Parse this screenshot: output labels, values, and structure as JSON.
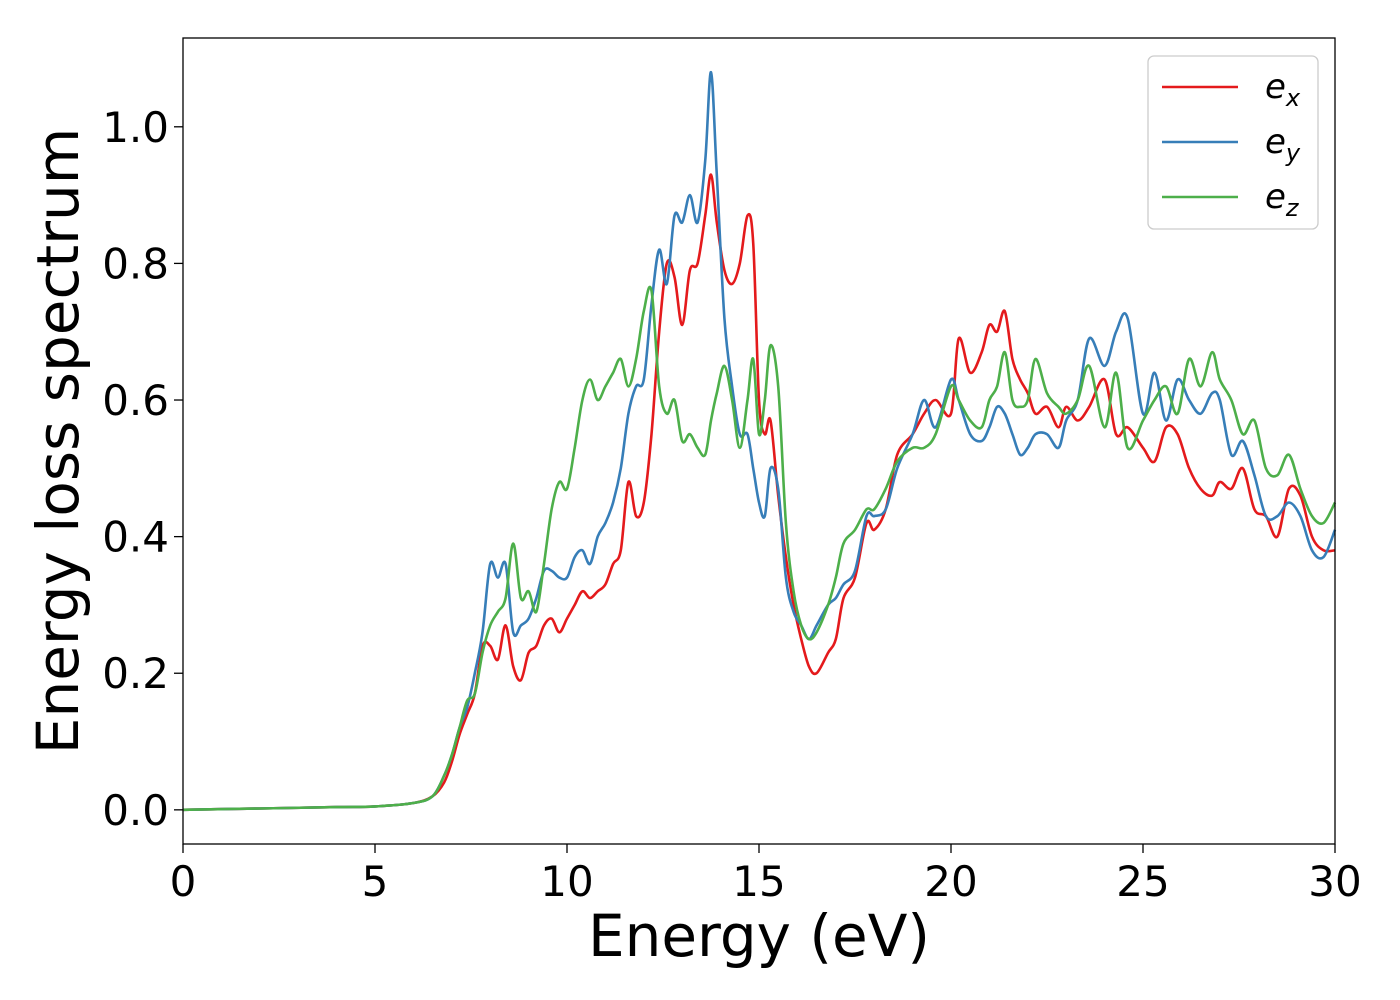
{
  "chart_data": {
    "type": "line",
    "title": "",
    "xlabel": "Energy (eV)",
    "ylabel": "Energy loss spectrum",
    "xlim": [
      0,
      30
    ],
    "ylim": [
      -0.05,
      1.13
    ],
    "xticks": [
      0,
      5,
      10,
      15,
      20,
      25,
      30
    ],
    "xtick_labels": [
      "0",
      "5",
      "10",
      "15",
      "20",
      "25",
      "30"
    ],
    "yticks": [
      0.0,
      0.2,
      0.4,
      0.6,
      0.8,
      1.0
    ],
    "ytick_labels": [
      "0.0",
      "0.2",
      "0.4",
      "0.6",
      "0.8",
      "1.0"
    ],
    "grid": false,
    "legend_placement": "top-right",
    "series": [
      {
        "name": "e_x",
        "label_main": "e",
        "label_sub": "x",
        "color": "#e41a1c",
        "x": [
          0,
          2,
          4,
          5,
          6,
          6.5,
          6.8,
          7.0,
          7.2,
          7.4,
          7.6,
          7.8,
          8.0,
          8.2,
          8.4,
          8.6,
          8.8,
          9.0,
          9.2,
          9.4,
          9.6,
          9.8,
          10.0,
          10.2,
          10.4,
          10.6,
          10.8,
          11.0,
          11.2,
          11.4,
          11.6,
          11.8,
          12.0,
          12.2,
          12.4,
          12.6,
          12.8,
          13.0,
          13.2,
          13.4,
          13.6,
          13.75,
          13.9,
          14.1,
          14.3,
          14.5,
          14.7,
          14.85,
          15.0,
          15.15,
          15.3,
          15.5,
          15.7,
          15.9,
          16.1,
          16.3,
          16.5,
          16.8,
          17.0,
          17.2,
          17.5,
          17.8,
          18.0,
          18.3,
          18.6,
          19.0,
          19.3,
          19.6,
          20.0,
          20.2,
          20.5,
          20.8,
          21.0,
          21.2,
          21.4,
          21.6,
          21.8,
          22.0,
          22.2,
          22.5,
          22.8,
          23.0,
          23.3,
          23.6,
          24.0,
          24.3,
          24.6,
          25.0,
          25.3,
          25.6,
          25.9,
          26.2,
          26.5,
          26.8,
          27.0,
          27.3,
          27.6,
          27.9,
          28.2,
          28.5,
          28.8,
          29.1,
          29.4,
          29.7,
          30.0
        ],
        "y": [
          0.0,
          0.002,
          0.004,
          0.005,
          0.01,
          0.02,
          0.04,
          0.07,
          0.11,
          0.14,
          0.17,
          0.24,
          0.24,
          0.22,
          0.27,
          0.21,
          0.19,
          0.23,
          0.24,
          0.27,
          0.28,
          0.26,
          0.28,
          0.3,
          0.32,
          0.31,
          0.32,
          0.33,
          0.36,
          0.38,
          0.48,
          0.43,
          0.45,
          0.55,
          0.7,
          0.8,
          0.78,
          0.71,
          0.79,
          0.8,
          0.87,
          0.93,
          0.86,
          0.79,
          0.77,
          0.8,
          0.87,
          0.83,
          0.6,
          0.55,
          0.57,
          0.46,
          0.37,
          0.3,
          0.25,
          0.21,
          0.2,
          0.23,
          0.25,
          0.31,
          0.34,
          0.42,
          0.41,
          0.44,
          0.52,
          0.55,
          0.58,
          0.6,
          0.58,
          0.69,
          0.64,
          0.67,
          0.71,
          0.7,
          0.73,
          0.66,
          0.63,
          0.61,
          0.58,
          0.59,
          0.56,
          0.59,
          0.57,
          0.59,
          0.63,
          0.55,
          0.56,
          0.53,
          0.51,
          0.56,
          0.55,
          0.5,
          0.47,
          0.46,
          0.48,
          0.47,
          0.5,
          0.44,
          0.43,
          0.4,
          0.47,
          0.46,
          0.4,
          0.38,
          0.38
        ]
      },
      {
        "name": "e_y",
        "label_main": "e",
        "label_sub": "y",
        "color": "#377eb8",
        "x": [
          0,
          2,
          4,
          5,
          6,
          6.5,
          6.8,
          7.0,
          7.2,
          7.4,
          7.6,
          7.8,
          8.0,
          8.2,
          8.4,
          8.6,
          8.8,
          9.0,
          9.2,
          9.4,
          9.6,
          9.8,
          10.0,
          10.2,
          10.4,
          10.6,
          10.8,
          11.0,
          11.2,
          11.4,
          11.6,
          11.8,
          12.0,
          12.2,
          12.4,
          12.6,
          12.8,
          13.0,
          13.2,
          13.4,
          13.6,
          13.75,
          13.9,
          14.1,
          14.3,
          14.5,
          14.7,
          14.85,
          15.0,
          15.15,
          15.3,
          15.5,
          15.7,
          15.9,
          16.1,
          16.3,
          16.5,
          16.8,
          17.0,
          17.2,
          17.5,
          17.8,
          18.0,
          18.3,
          18.6,
          19.0,
          19.3,
          19.6,
          20.0,
          20.2,
          20.5,
          20.8,
          21.0,
          21.2,
          21.4,
          21.6,
          21.8,
          22.0,
          22.2,
          22.5,
          22.8,
          23.0,
          23.3,
          23.6,
          24.0,
          24.3,
          24.6,
          25.0,
          25.3,
          25.6,
          25.9,
          26.2,
          26.5,
          26.8,
          27.0,
          27.3,
          27.6,
          27.9,
          28.2,
          28.5,
          28.8,
          29.1,
          29.4,
          29.7,
          30.0
        ],
        "y": [
          0.0,
          0.002,
          0.004,
          0.005,
          0.01,
          0.02,
          0.05,
          0.08,
          0.12,
          0.15,
          0.2,
          0.26,
          0.36,
          0.34,
          0.36,
          0.26,
          0.27,
          0.28,
          0.31,
          0.35,
          0.35,
          0.34,
          0.34,
          0.37,
          0.38,
          0.36,
          0.4,
          0.42,
          0.45,
          0.5,
          0.58,
          0.62,
          0.63,
          0.74,
          0.82,
          0.77,
          0.87,
          0.86,
          0.9,
          0.86,
          0.95,
          1.08,
          0.93,
          0.72,
          0.62,
          0.55,
          0.55,
          0.5,
          0.45,
          0.43,
          0.5,
          0.47,
          0.34,
          0.29,
          0.27,
          0.25,
          0.27,
          0.3,
          0.31,
          0.33,
          0.35,
          0.43,
          0.43,
          0.44,
          0.5,
          0.55,
          0.6,
          0.56,
          0.63,
          0.6,
          0.55,
          0.54,
          0.56,
          0.59,
          0.58,
          0.55,
          0.52,
          0.53,
          0.55,
          0.55,
          0.53,
          0.57,
          0.6,
          0.69,
          0.65,
          0.7,
          0.72,
          0.58,
          0.64,
          0.57,
          0.63,
          0.6,
          0.58,
          0.61,
          0.6,
          0.52,
          0.54,
          0.49,
          0.43,
          0.43,
          0.45,
          0.43,
          0.38,
          0.37,
          0.41
        ]
      },
      {
        "name": "e_z",
        "label_main": "e",
        "label_sub": "z",
        "color": "#4daf4a",
        "x": [
          0,
          2,
          4,
          5,
          6,
          6.5,
          6.8,
          7.0,
          7.2,
          7.4,
          7.6,
          7.8,
          8.0,
          8.2,
          8.4,
          8.6,
          8.8,
          9.0,
          9.2,
          9.4,
          9.6,
          9.8,
          10.0,
          10.2,
          10.4,
          10.6,
          10.8,
          11.0,
          11.2,
          11.4,
          11.6,
          11.8,
          12.0,
          12.2,
          12.4,
          12.6,
          12.8,
          13.0,
          13.2,
          13.4,
          13.6,
          13.75,
          13.9,
          14.1,
          14.3,
          14.5,
          14.7,
          14.85,
          15.0,
          15.15,
          15.3,
          15.5,
          15.7,
          15.9,
          16.1,
          16.3,
          16.5,
          16.8,
          17.0,
          17.2,
          17.5,
          17.8,
          18.0,
          18.3,
          18.6,
          19.0,
          19.3,
          19.6,
          20.0,
          20.2,
          20.5,
          20.8,
          21.0,
          21.2,
          21.4,
          21.6,
          21.8,
          22.0,
          22.2,
          22.5,
          22.8,
          23.0,
          23.3,
          23.6,
          24.0,
          24.3,
          24.6,
          25.0,
          25.3,
          25.6,
          25.9,
          26.2,
          26.5,
          26.8,
          27.0,
          27.3,
          27.6,
          27.9,
          28.2,
          28.5,
          28.8,
          29.1,
          29.4,
          29.7,
          30.0
        ],
        "y": [
          0.0,
          0.002,
          0.004,
          0.005,
          0.01,
          0.02,
          0.05,
          0.08,
          0.12,
          0.16,
          0.17,
          0.23,
          0.27,
          0.29,
          0.31,
          0.39,
          0.31,
          0.32,
          0.29,
          0.36,
          0.44,
          0.48,
          0.47,
          0.53,
          0.6,
          0.63,
          0.6,
          0.62,
          0.64,
          0.66,
          0.62,
          0.66,
          0.73,
          0.76,
          0.62,
          0.58,
          0.6,
          0.54,
          0.55,
          0.53,
          0.52,
          0.57,
          0.61,
          0.65,
          0.6,
          0.53,
          0.6,
          0.66,
          0.55,
          0.6,
          0.68,
          0.62,
          0.42,
          0.32,
          0.27,
          0.25,
          0.26,
          0.3,
          0.34,
          0.39,
          0.41,
          0.44,
          0.44,
          0.47,
          0.51,
          0.53,
          0.53,
          0.55,
          0.62,
          0.6,
          0.57,
          0.56,
          0.6,
          0.62,
          0.67,
          0.6,
          0.59,
          0.6,
          0.66,
          0.61,
          0.59,
          0.58,
          0.6,
          0.65,
          0.56,
          0.64,
          0.53,
          0.57,
          0.6,
          0.62,
          0.58,
          0.66,
          0.62,
          0.67,
          0.63,
          0.6,
          0.55,
          0.57,
          0.5,
          0.49,
          0.52,
          0.47,
          0.43,
          0.42,
          0.45
        ]
      }
    ]
  }
}
